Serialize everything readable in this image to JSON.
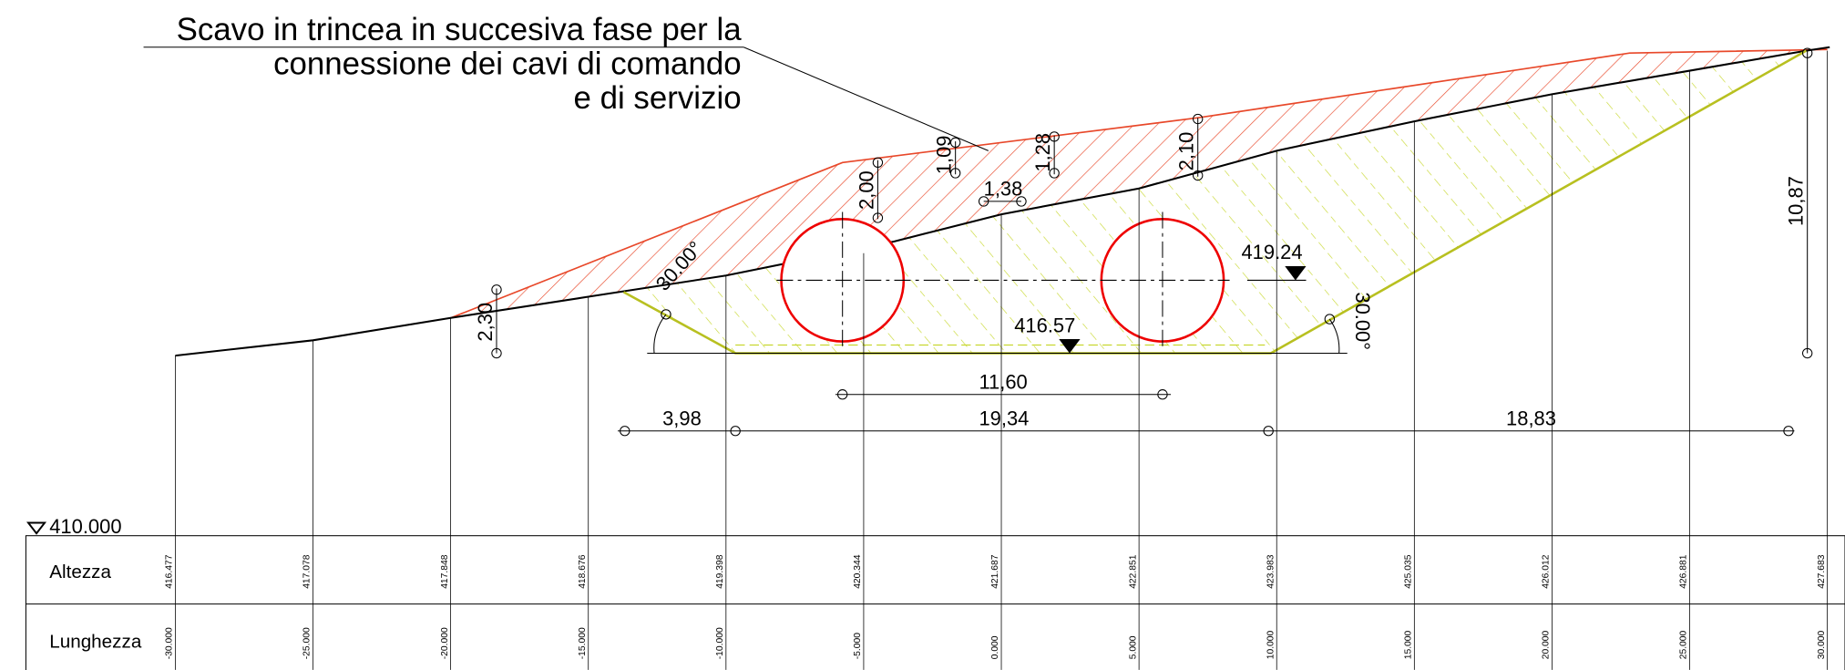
{
  "title": [
    "Scavo in trincea in succesiva fase per la",
    "connessione dei cavi di comando",
    "e di servizio"
  ],
  "dimensions": {
    "h_left": "2,30",
    "h_a": "2,00",
    "h_b": "1,09",
    "h_c": "1,28",
    "h_d": "2,10",
    "w_small": "1,38",
    "h_right": "10,87",
    "angle_left": "30.00°",
    "angle_right": "30.00°",
    "axis_distance": "11,60",
    "w_left": "3,98",
    "w_mid": "19,34",
    "w_right": "18,83"
  },
  "elevations": {
    "pipe_axis": "419.24",
    "bottom": "416.57",
    "datum": "410.000"
  },
  "table": {
    "row_labels": [
      "Altezza",
      "Lunghezza"
    ],
    "altezza": [
      "416.477",
      "417.078",
      "417.848",
      "418.676",
      "419.398",
      "420.344",
      "421.687",
      "422.851",
      "423.983",
      "425.035",
      "426.012",
      "426.881",
      "427.683"
    ],
    "lunghezza": [
      "-30.000",
      "-25.000",
      "-20.000",
      "-15.000",
      "-10.000",
      "-5.000",
      "0.000",
      "5.000",
      "10.000",
      "15.000",
      "20.000",
      "25.000",
      "30.000"
    ]
  }
}
